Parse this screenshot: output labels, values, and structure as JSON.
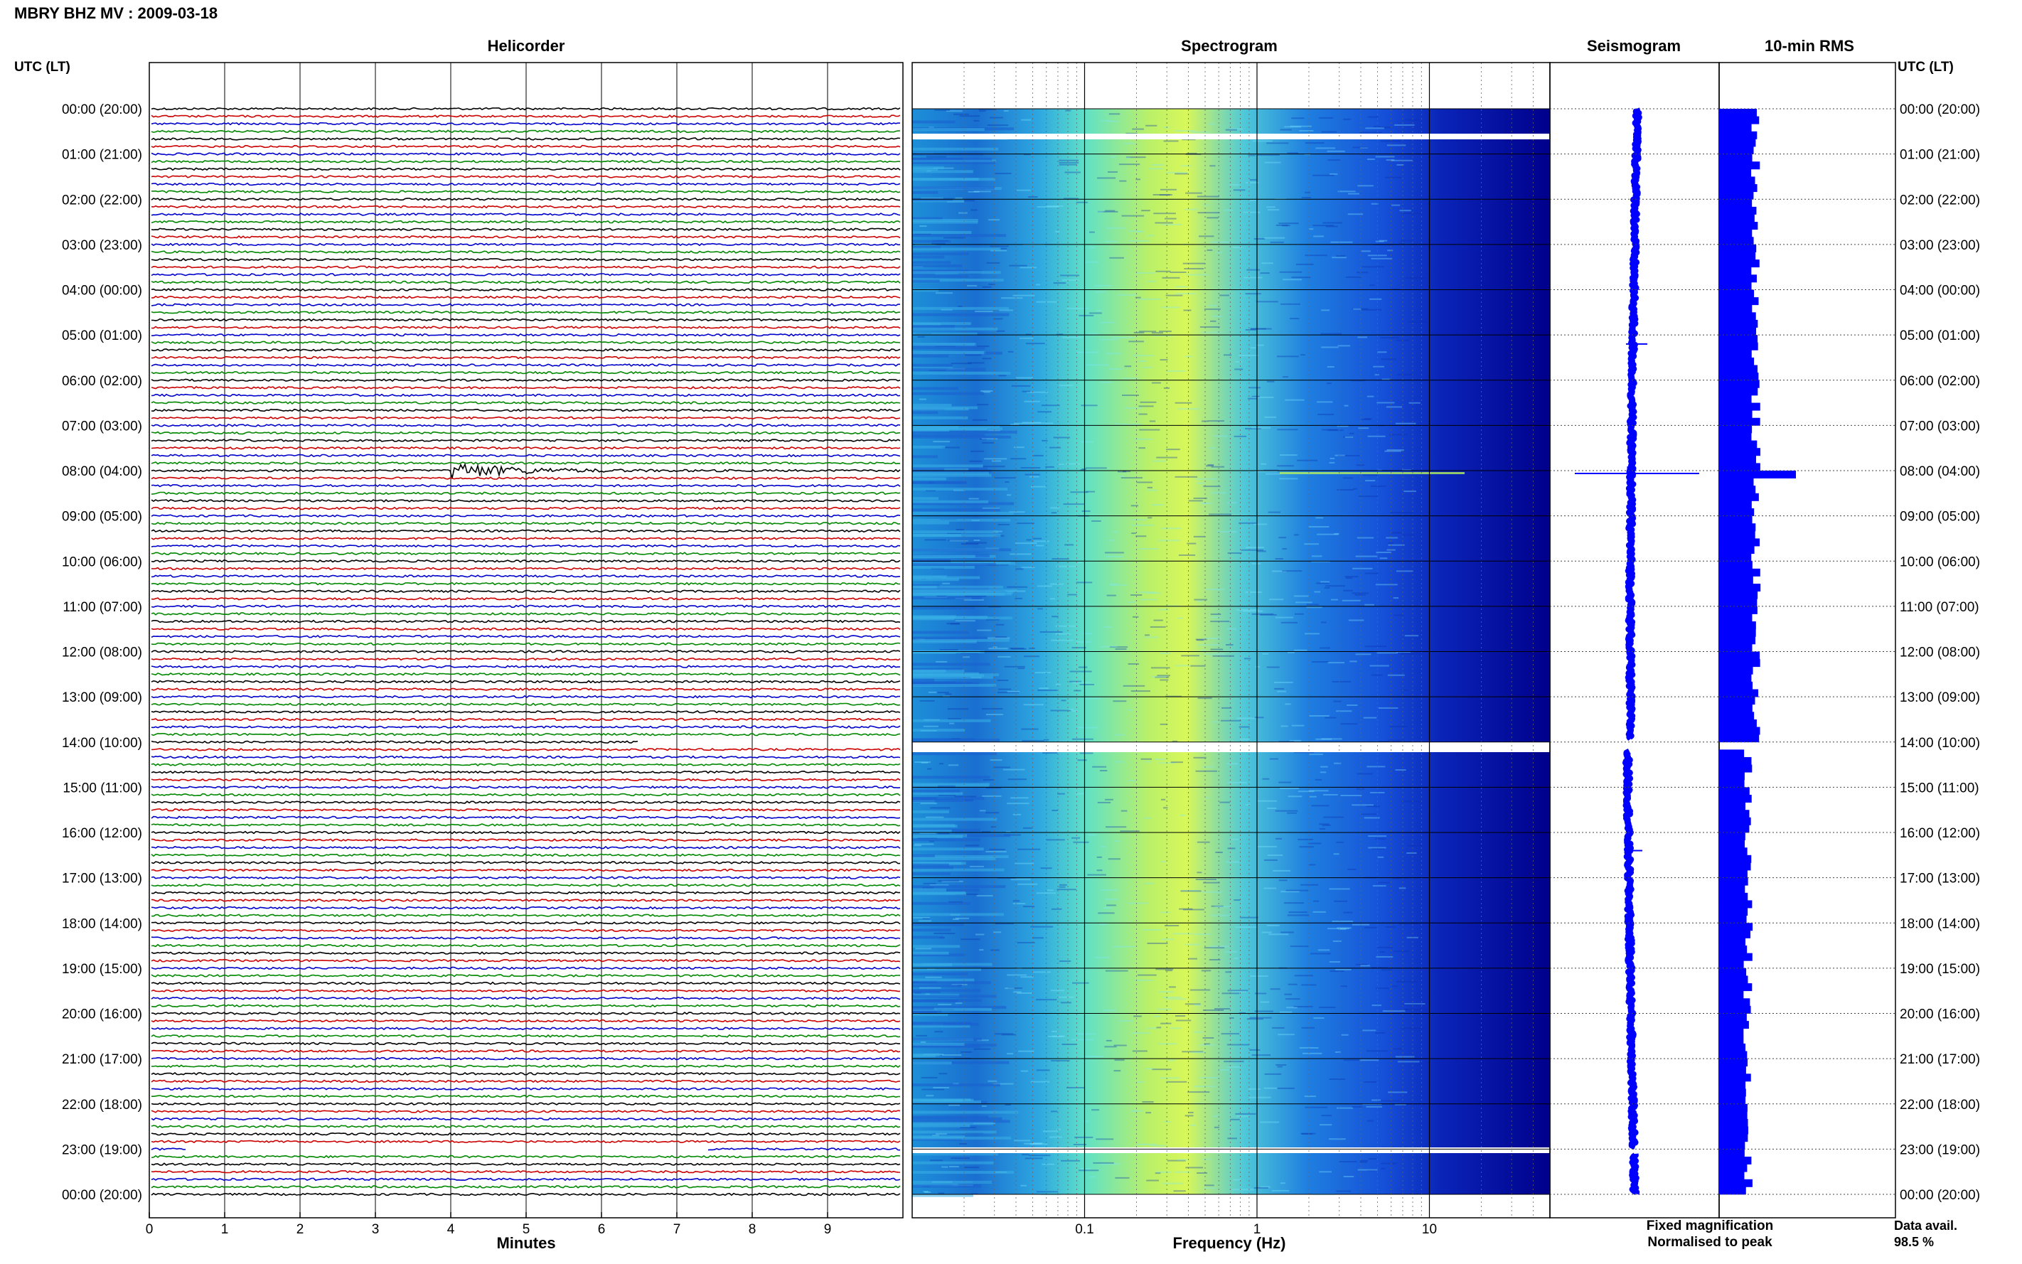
{
  "header": {
    "title": "MBRY BHZ MV : 2009-03-18"
  },
  "panels": {
    "helicorder": "Helicorder",
    "spectrogram": "Spectrogram",
    "seismogram": "Seismogram",
    "rms": "10-min RMS"
  },
  "axes": {
    "left_title": "UTC (LT)",
    "right_title": "UTC (LT)",
    "minutes_label": "Minutes",
    "frequency_label": "Frequency (Hz)"
  },
  "legend": {
    "fixed": "Fixed magnification",
    "fixed_color": "#0000ff",
    "normalised": "Normalised to peak",
    "normalised_color": "#ff0000"
  },
  "availability": {
    "label": "Data avail.",
    "value": "98.5 %"
  },
  "colors": {
    "trace_cycle": [
      "#000000",
      "#cc0000",
      "#0000cc",
      "#008800"
    ],
    "spectrogram_low": "#00008b",
    "spectrogram_high": "#ffff00",
    "rms_bar": "#0000ff"
  },
  "chart_data": {
    "type": "heatmap",
    "title": "MBRY BHZ MV : 2009-03-18",
    "hour_labels": [
      "00:00 (20:00)",
      "01:00 (21:00)",
      "02:00 (22:00)",
      "03:00 (23:00)",
      "04:00 (00:00)",
      "05:00 (01:00)",
      "06:00 (02:00)",
      "07:00 (03:00)",
      "08:00 (04:00)",
      "09:00 (05:00)",
      "10:00 (06:00)",
      "11:00 (07:00)",
      "12:00 (08:00)",
      "13:00 (09:00)",
      "14:00 (10:00)",
      "15:00 (11:00)",
      "16:00 (12:00)",
      "17:00 (13:00)",
      "18:00 (14:00)",
      "19:00 (15:00)",
      "20:00 (16:00)",
      "21:00 (17:00)",
      "22:00 (18:00)",
      "23:00 (19:00)",
      "00:00 (20:00)"
    ],
    "helicorder": {
      "xlabel": "Minutes",
      "x_ticks": [
        0,
        1,
        2,
        3,
        4,
        5,
        6,
        7,
        8,
        9
      ],
      "xlim": [
        0,
        10
      ],
      "lines_per_hour": 6,
      "event": {
        "utc_hour": 8.0,
        "minute": 4.0
      },
      "data_gaps": [
        {
          "utc_hour": 14.0,
          "from_min": 6.5,
          "to_min": 10
        },
        {
          "utc_hour": 14.2,
          "from_min": 0,
          "to_min": 0.4
        },
        {
          "utc_hour": 23.0,
          "from_min": 0.5,
          "to_min": 7.4
        }
      ]
    },
    "spectrogram": {
      "xlabel": "Frequency (Hz)",
      "x_scale": "log",
      "xlim": [
        0.01,
        50
      ],
      "x_tick_labels": [
        "0.1",
        "1",
        "10"
      ],
      "gaps_utc_hours": [
        0.3,
        14.0,
        23.0
      ]
    },
    "rms": {
      "peak": {
        "utc_hour": 8.0,
        "relative": 1.8
      }
    },
    "data_availability_percent": 98.5
  }
}
